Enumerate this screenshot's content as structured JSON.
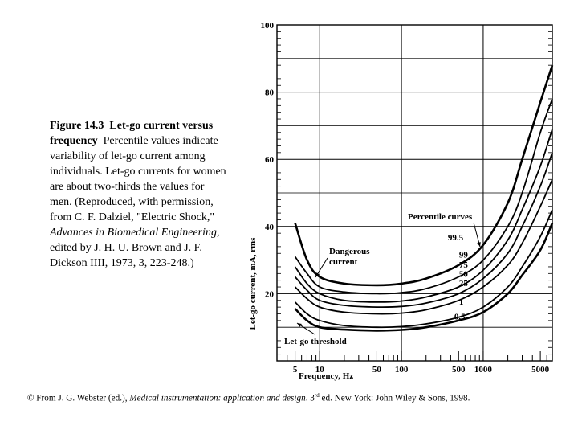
{
  "caption": {
    "figure_label": "Figure 14.3",
    "title": "Let-go current versus frequency",
    "body": "Percentile values indicate variability of let-go current among individuals. Let-go currents for women are about two-thirds the values for men. (Reproduced, with permission, from C. F. Dalziel, \"Electric Shock,\"",
    "journal": "Advances in Biomedical Engineering",
    "tail": ", edited by J. H. U. Brown and J. F. Dickson IIII, 1973, 3, 223-248.)"
  },
  "footer": {
    "prefix": "© From J. G. Webster (ed.),",
    "book": "Medical instrumentation: application and design",
    "edition_num": ". 3",
    "edition_sup": "rd",
    "suffix": "ed. New York: John Wiley & Sons, 1998."
  },
  "chart_data": {
    "type": "line",
    "xlabel": "Frequency, Hz",
    "ylabel": "Let-go current, mA, rms",
    "x_scale": "log",
    "xlim": [
      3,
      7000
    ],
    "ylim": [
      0,
      100
    ],
    "x_tick_labels": [
      5,
      10,
      50,
      100,
      500,
      1000,
      5000
    ],
    "y_tick_labels": [
      20,
      40,
      60,
      80,
      100
    ],
    "grid": true,
    "annotations": {
      "percentile_curves": "Percentile curves",
      "dangerous_current": [
        "Dangerous",
        "current"
      ],
      "let_go_threshold": "Let-go threshold"
    },
    "series": [
      {
        "name": "99.5",
        "x": [
          5,
          7,
          10,
          20,
          50,
          100,
          200,
          500,
          1000,
          2000,
          3000,
          5000,
          7000
        ],
        "y": [
          41,
          30,
          25,
          23,
          22.5,
          23,
          24.5,
          28.5,
          34.5,
          47,
          60,
          77,
          88
        ]
      },
      {
        "name": "99",
        "x": [
          5,
          7,
          10,
          20,
          50,
          100,
          200,
          500,
          1000,
          2000,
          3000,
          5000,
          7000
        ],
        "y": [
          31,
          26,
          22,
          20.5,
          20,
          20.3,
          21.5,
          25,
          30,
          40,
          50,
          68,
          78
        ]
      },
      {
        "name": "75",
        "x": [
          5,
          7,
          10,
          20,
          50,
          100,
          200,
          500,
          1000,
          2000,
          3000,
          5000,
          7000
        ],
        "y": [
          28,
          23,
          20,
          18,
          17.5,
          17.8,
          19,
          22,
          27,
          36,
          45,
          58,
          69
        ]
      },
      {
        "name": "50",
        "x": [
          5,
          7,
          10,
          20,
          50,
          100,
          200,
          500,
          1000,
          2000,
          3000,
          5000,
          7000
        ],
        "y": [
          25,
          21,
          18,
          16.5,
          16,
          16.2,
          17.2,
          20,
          24.5,
          32,
          40,
          52,
          62
        ]
      },
      {
        "name": "25",
        "x": [
          5,
          7,
          10,
          20,
          50,
          100,
          200,
          500,
          1000,
          2000,
          3000,
          5000,
          7000
        ],
        "y": [
          22,
          18.5,
          16,
          14.5,
          14,
          14.2,
          15.2,
          18,
          22,
          28.5,
          35,
          46,
          54
        ]
      },
      {
        "name": "1",
        "x": [
          5,
          7,
          10,
          20,
          50,
          100,
          200,
          500,
          1000,
          2000,
          3000,
          5000,
          7000
        ],
        "y": [
          17.5,
          14,
          12,
          10.5,
          10,
          10.2,
          11,
          13,
          16,
          22,
          28,
          37,
          45
        ]
      },
      {
        "name": "0.5",
        "x": [
          5,
          7,
          10,
          20,
          50,
          100,
          200,
          500,
          1000,
          2000,
          3000,
          5000,
          7000
        ],
        "y": [
          15.5,
          12,
          10,
          9.3,
          9,
          9.2,
          10,
          12,
          14.5,
          20,
          25.5,
          33,
          41
        ]
      }
    ],
    "dangerous_current_band": {
      "top_series": "99.5",
      "bottom_series": "99"
    }
  }
}
